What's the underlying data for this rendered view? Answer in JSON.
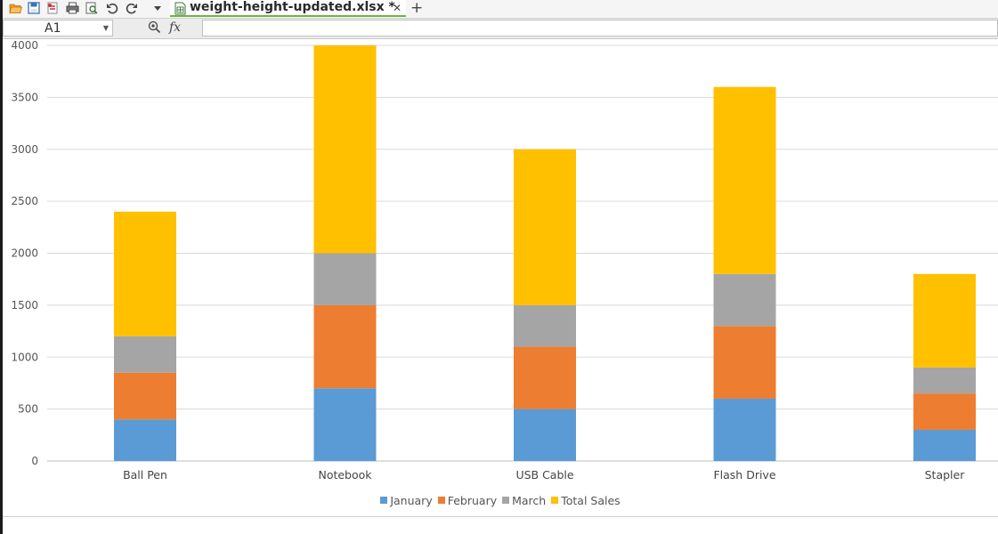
{
  "toolbar": {
    "tab_title": "weight-height-updated.xlsx *",
    "icons": [
      "open-folder-icon",
      "save-icon",
      "export-pdf-icon",
      "print-icon",
      "print-preview-icon",
      "undo-icon",
      "redo-icon",
      "dropdown-icon"
    ]
  },
  "formula_bar": {
    "cell_ref": "A1",
    "fx_label": "fx",
    "formula_value": ""
  },
  "colors": {
    "january": "#5b9bd5",
    "february": "#ed7d31",
    "march": "#a5a5a5",
    "total_sales": "#ffc000",
    "accent_tab": "#76b041"
  },
  "chart_data": {
    "type": "bar",
    "stacked": true,
    "title": "",
    "xlabel": "",
    "ylabel": "",
    "ylim": [
      0,
      4000
    ],
    "ytick_step": 500,
    "y_tick_labels": [
      "0",
      "500",
      "1000",
      "1500",
      "2000",
      "2500",
      "3000",
      "3500",
      "4000"
    ],
    "categories": [
      "Ball Pen",
      "Notebook",
      "USB Cable",
      "Flash Drive",
      "Stapler"
    ],
    "series": [
      {
        "name": "January",
        "color": "#5b9bd5",
        "values": [
          400,
          700,
          500,
          600,
          300
        ]
      },
      {
        "name": "February",
        "color": "#ed7d31",
        "values": [
          450,
          800,
          600,
          700,
          350
        ]
      },
      {
        "name": "March",
        "color": "#a5a5a5",
        "values": [
          350,
          500,
          400,
          500,
          250
        ]
      },
      {
        "name": "Total Sales",
        "color": "#ffc000",
        "values": [
          1200,
          2000,
          1500,
          1800,
          900
        ]
      }
    ],
    "legend_position": "bottom",
    "grid": true
  }
}
